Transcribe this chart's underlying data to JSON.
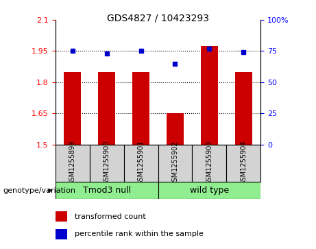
{
  "title": "GDS4827 / 10423293",
  "samples": [
    "GSM1255899",
    "GSM1255900",
    "GSM1255901",
    "GSM1255902",
    "GSM1255903",
    "GSM1255904"
  ],
  "bar_values": [
    1.85,
    1.85,
    1.85,
    1.65,
    1.975,
    1.85
  ],
  "percentile_values": [
    75,
    73,
    75,
    65,
    77,
    74
  ],
  "bar_color": "#cc0000",
  "dot_color": "#0000cc",
  "ylim_left": [
    1.5,
    2.1
  ],
  "ylim_right": [
    0,
    100
  ],
  "yticks_left": [
    1.5,
    1.65,
    1.8,
    1.95,
    2.1
  ],
  "yticks_right": [
    0,
    25,
    50,
    75,
    100
  ],
  "ytick_labels_left": [
    "1.5",
    "1.65",
    "1.8",
    "1.95",
    "2.1"
  ],
  "ytick_labels_right": [
    "0",
    "25",
    "50",
    "75",
    "100%"
  ],
  "group1_label": "Tmod3 null",
  "group2_label": "wild type",
  "group1_color": "#90ee90",
  "group2_color": "#90ee90",
  "group1_indices": [
    0,
    1,
    2
  ],
  "group2_indices": [
    3,
    4,
    5
  ],
  "genotype_label": "genotype/variation",
  "legend_bar_label": "transformed count",
  "legend_dot_label": "percentile rank within the sample",
  "bar_width": 0.5,
  "base_value": 1.5,
  "background_color": "#ffffff",
  "tick_area_bg": "#d3d3d3",
  "gridline_values": [
    1.95,
    1.8,
    1.65
  ],
  "title_fontsize": 10,
  "axis_fontsize": 8,
  "sample_fontsize": 7,
  "group_fontsize": 9,
  "legend_fontsize": 8
}
